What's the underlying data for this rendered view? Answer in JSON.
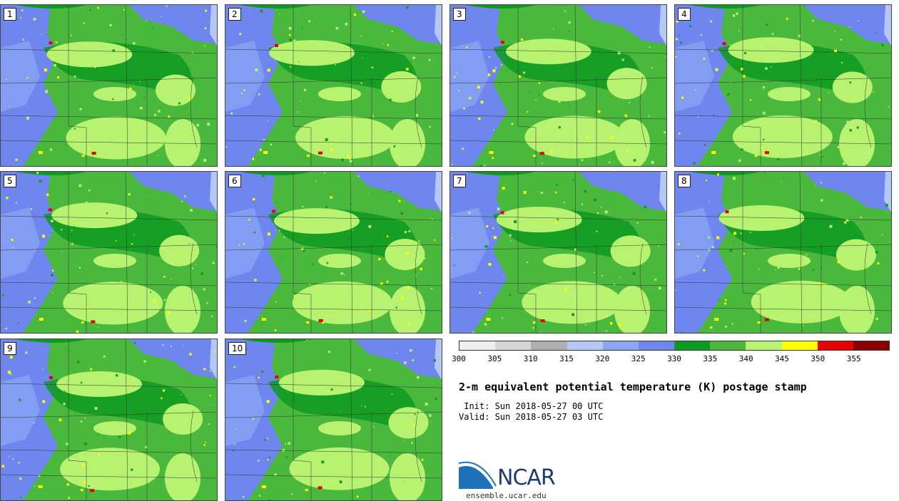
{
  "members": [
    {
      "label": "1"
    },
    {
      "label": "2"
    },
    {
      "label": "3"
    },
    {
      "label": "4"
    },
    {
      "label": "5"
    },
    {
      "label": "6"
    },
    {
      "label": "7"
    },
    {
      "label": "8"
    },
    {
      "label": "9"
    },
    {
      "label": "10"
    }
  ],
  "colorbar": {
    "colors": [
      "#efefef",
      "#d6d6d6",
      "#aeaeae",
      "#b4c7f7",
      "#8aa6f4",
      "#6f86ee",
      "#0e9a21",
      "#4ab83c",
      "#b7f370",
      "#ffff00",
      "#e60000",
      "#8b0000"
    ],
    "ticks": [
      "300",
      "305",
      "310",
      "315",
      "320",
      "325",
      "330",
      "335",
      "340",
      "345",
      "350",
      "355"
    ]
  },
  "title": "2-m equivalent potential temperature (K) postage stamp",
  "init": " Init: Sun 2018-05-27 00 UTC",
  "valid": "Valid: Sun 2018-05-27 03 UTC",
  "logo": {
    "text": "NCAR",
    "url": "ensemble.ucar.edu"
  }
}
